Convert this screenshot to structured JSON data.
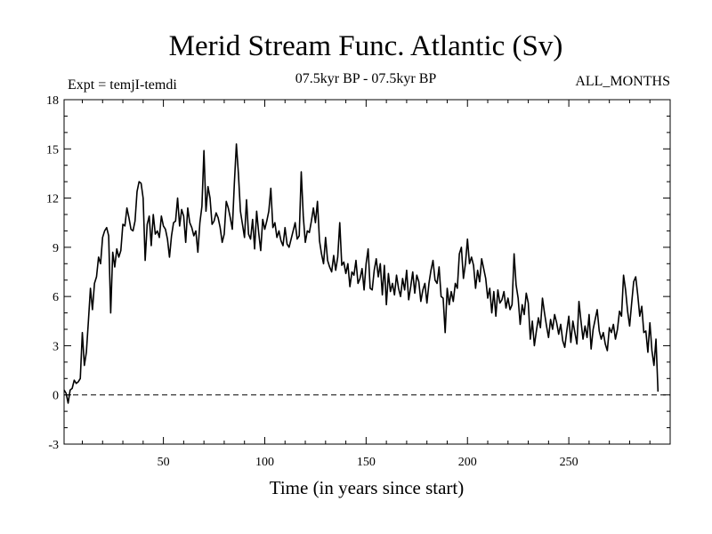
{
  "chart_data": {
    "type": "line",
    "title": "Merid Stream Func. Atlantic (Sv)",
    "subtitle_left": "Expt = temjI-temdi",
    "subtitle_center": "07.5kyr BP - 07.5kyr BP",
    "subtitle_right": "ALL_MONTHS",
    "xlabel": "Time (in years since start)",
    "ylabel": "",
    "xlim": [
      1,
      300
    ],
    "ylim": [
      -3,
      18
    ],
    "x_ticks": [
      50,
      100,
      150,
      200,
      250
    ],
    "y_ticks": [
      -3,
      0,
      3,
      6,
      9,
      12,
      15,
      18
    ],
    "zero_line": true,
    "grid": false,
    "series": [
      {
        "name": "Merid Stream Func. Atlantic",
        "x_start": 1,
        "x_step": 1,
        "values": [
          0.3,
          0.1,
          -0.5,
          0.3,
          0.4,
          0.9,
          0.7,
          0.8,
          1.0,
          3.8,
          1.8,
          2.6,
          4.5,
          6.5,
          5.2,
          6.8,
          7.2,
          8.4,
          8.0,
          9.6,
          10.0,
          10.2,
          9.7,
          5.0,
          8.7,
          7.8,
          8.9,
          8.4,
          8.8,
          10.4,
          10.3,
          11.4,
          10.8,
          10.1,
          10.0,
          10.6,
          12.4,
          13.0,
          12.9,
          12.0,
          8.2,
          10.4,
          10.9,
          9.1,
          11.0,
          9.8,
          10.0,
          9.6,
          10.9,
          10.3,
          10.1,
          9.5,
          8.4,
          9.7,
          10.5,
          10.6,
          12.0,
          10.3,
          11.3,
          10.9,
          9.3,
          11.4,
          10.5,
          10.2,
          9.7,
          10.0,
          8.7,
          10.5,
          11.5,
          14.9,
          11.2,
          12.7,
          12.0,
          10.4,
          10.6,
          11.1,
          10.8,
          10.2,
          9.3,
          9.8,
          11.8,
          11.4,
          10.8,
          10.1,
          12.9,
          15.3,
          13.5,
          11.2,
          10.4,
          9.6,
          11.9,
          9.8,
          9.5,
          10.7,
          8.9,
          11.2,
          9.9,
          8.8,
          10.7,
          10.1,
          10.6,
          11.2,
          12.6,
          10.2,
          10.5,
          9.6,
          10.0,
          9.4,
          9.1,
          10.2,
          9.2,
          9.0,
          9.5,
          10.0,
          10.5,
          9.5,
          9.7,
          13.6,
          10.9,
          9.3,
          10.0,
          9.9,
          10.6,
          11.4,
          10.5,
          11.8,
          9.4,
          8.6,
          8.0,
          9.6,
          8.2,
          7.8,
          7.5,
          8.5,
          7.6,
          8.4,
          10.5,
          7.9,
          8.1,
          7.4,
          8.0,
          6.6,
          7.5,
          7.3,
          8.2,
          6.8,
          7.1,
          7.7,
          6.4,
          8.0,
          8.9,
          6.5,
          6.4,
          7.6,
          8.3,
          7.2,
          8.0,
          6.1,
          7.9,
          5.5,
          7.4,
          6.3,
          6.8,
          6.1,
          7.3,
          6.5,
          6.0,
          7.1,
          6.4,
          7.6,
          5.8,
          6.6,
          7.5,
          6.2,
          7.3,
          6.9,
          5.7,
          6.4,
          6.8,
          5.6,
          6.8,
          7.6,
          8.2,
          7.0,
          6.8,
          7.8,
          6.0,
          5.9,
          3.8,
          6.5,
          5.5,
          6.3,
          5.7,
          6.8,
          6.5,
          8.6,
          9.0,
          7.1,
          8.0,
          9.5,
          8.0,
          8.4,
          7.9,
          6.5,
          7.6,
          6.9,
          8.3,
          7.7,
          7.1,
          5.9,
          6.5,
          5.0,
          6.3,
          4.8,
          6.4,
          5.6,
          5.8,
          6.3,
          5.3,
          5.9,
          5.2,
          5.5,
          8.6,
          6.7,
          5.9,
          4.3,
          5.5,
          4.9,
          6.2,
          5.6,
          3.4,
          4.5,
          3.0,
          3.9,
          4.7,
          4.1,
          5.9,
          5.0,
          4.2,
          3.5,
          4.6,
          4.0,
          4.9,
          4.4,
          3.7,
          4.3,
          3.3,
          2.9,
          3.9,
          4.8,
          3.2,
          4.5,
          3.8,
          3.1,
          5.7,
          4.5,
          3.4,
          4.2,
          3.5,
          4.9,
          2.8,
          4.0,
          4.6,
          5.2,
          3.9,
          3.4,
          3.8,
          3.1,
          2.7,
          4.1,
          3.8,
          4.3,
          3.4,
          4.0,
          5.1,
          4.8,
          7.3,
          6.4,
          5.1,
          4.2,
          5.6,
          6.9,
          7.2,
          6.1,
          4.8,
          5.4,
          3.8,
          3.9,
          2.6,
          4.4,
          2.7,
          1.8,
          3.4,
          0.2
        ]
      }
    ]
  }
}
